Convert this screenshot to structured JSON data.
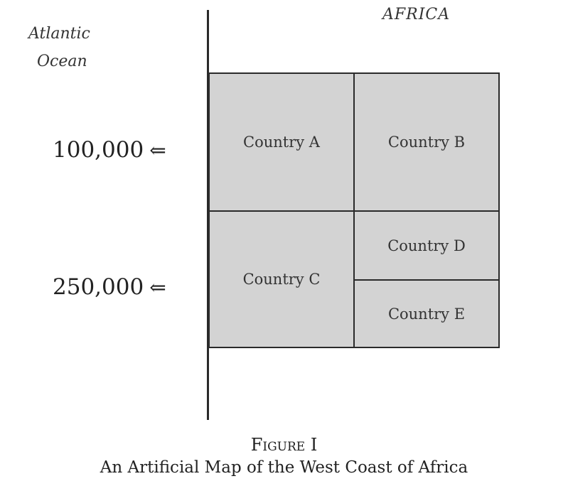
{
  "map": {
    "ocean_label_line1": "Atlantic",
    "ocean_label_line2": "Ocean",
    "continent_label": "AFRICA",
    "countries": {
      "a": "Country A",
      "b": "Country B",
      "c": "Country C",
      "d": "Country D",
      "e": "Country E"
    },
    "fill_color": "#d3d3d3",
    "border_color": "#2a2a2a"
  },
  "populations": [
    {
      "value": "100,000",
      "arrow": "⇐"
    },
    {
      "value": "250,000",
      "arrow": "⇐"
    }
  ],
  "figure": {
    "label": "Figure I",
    "caption": "An Artificial Map of the West Coast of Africa"
  }
}
